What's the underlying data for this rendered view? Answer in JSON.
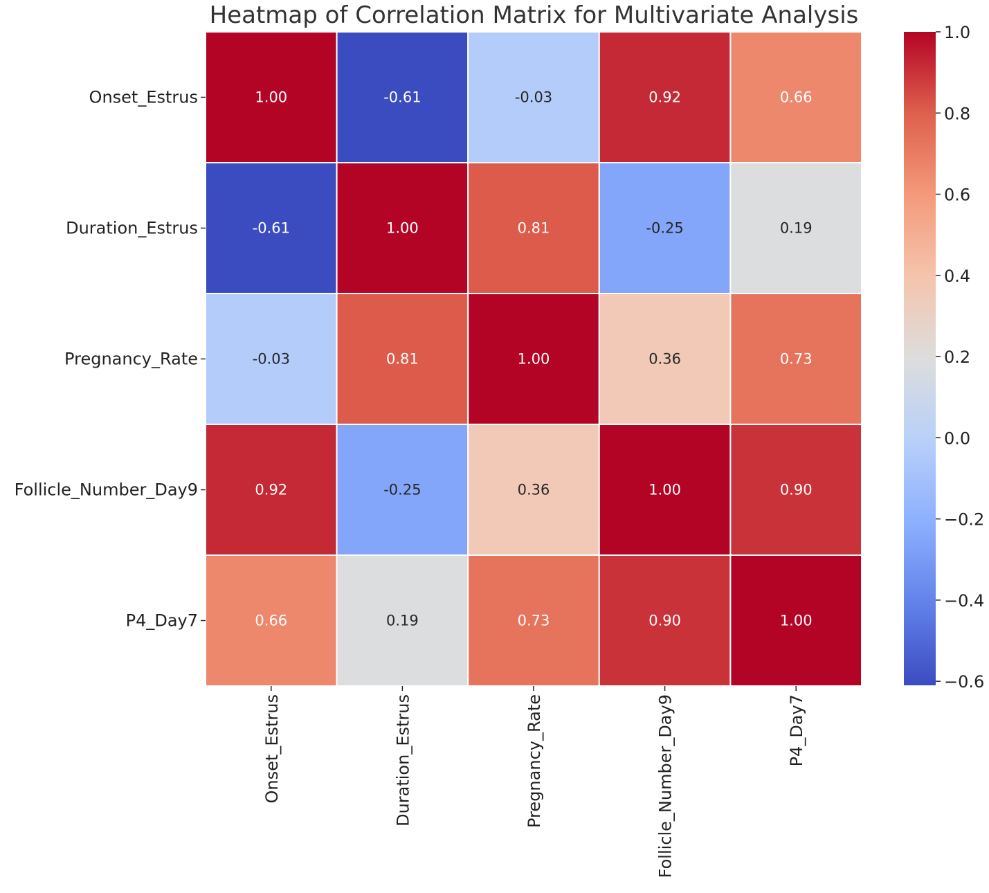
{
  "chart_data": {
    "type": "heatmap",
    "title": "Heatmap of Correlation Matrix for Multivariate Analysis",
    "row_labels": [
      "Onset_Estrus",
      "Duration_Estrus",
      "Pregnancy_Rate",
      "Follicle_Number_Day9",
      "P4_Day7"
    ],
    "col_labels": [
      "Onset_Estrus",
      "Duration_Estrus",
      "Pregnancy_Rate",
      "Follicle_Number_Day9",
      "P4_Day7"
    ],
    "values": [
      [
        1.0,
        -0.61,
        -0.03,
        0.92,
        0.66
      ],
      [
        -0.61,
        1.0,
        0.81,
        -0.25,
        0.19
      ],
      [
        -0.03,
        0.81,
        1.0,
        0.36,
        0.73
      ],
      [
        0.92,
        -0.25,
        0.36,
        1.0,
        0.9
      ],
      [
        0.66,
        0.19,
        0.73,
        0.9,
        1.0
      ]
    ],
    "value_format": "0.00",
    "colormap": "coolwarm",
    "colorbar": {
      "vmin": -0.61,
      "vmax": 1.0,
      "ticks": [
        1.0,
        0.8,
        0.6,
        0.4,
        0.2,
        0.0,
        -0.2,
        -0.4,
        -0.6
      ],
      "tick_labels": [
        "1.0",
        "0.8",
        "0.6",
        "0.4",
        "0.2",
        "0.0",
        "−0.2",
        "−0.4",
        "−0.6"
      ],
      "position": "right"
    },
    "xlabel": "",
    "ylabel": ""
  },
  "colors": {
    "cold": "#3b4cc0",
    "neutral": "#dddddd",
    "hot": "#b40426",
    "grid_line": "#ffffff",
    "text_light": "#ffffff",
    "text_dark": "#262626"
  }
}
